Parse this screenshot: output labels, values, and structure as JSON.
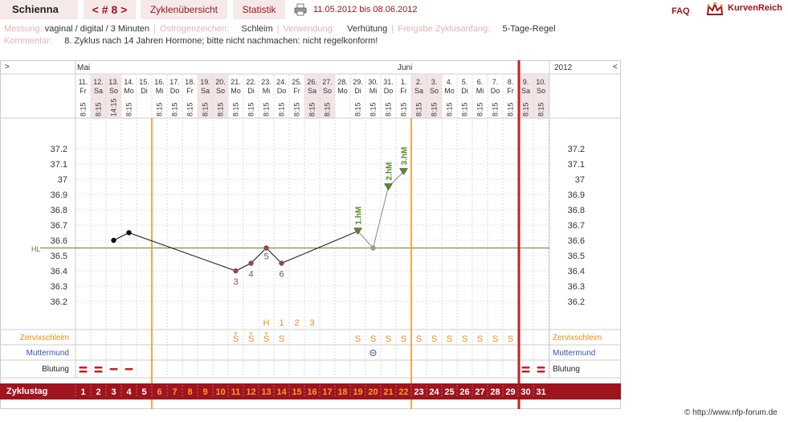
{
  "header": {
    "name": "Schienna",
    "cycle_nav": "< # 8 >",
    "tab_overview": "Zyklenübersicht",
    "tab_stats": "Statistik",
    "date_range": "11.05.2012 bis 08.06.2012",
    "faq": "FAQ",
    "brand": "KurvenReich",
    "print_icon": "printer-icon",
    "crown_icon": "crown-icon"
  },
  "info": {
    "messung_label": "Messung:",
    "messung_value": "vaginal / digital / 3 Minuten",
    "oestrogen_label": "Östrogenzeichen:",
    "oestrogen_value": "Schleim",
    "verwendung_label": "Verwendung:",
    "verwendung_value": "Verhütung",
    "freigabe_label": "Freigabe Zyklusanfang:",
    "freigabe_value": "5-Tage-Regel",
    "kommentar_label": "Kommentar:",
    "kommentar_value": "8. Zyklus nach 14 Jahren Hormone; bitte nicht nachmachen: nicht regelkonform!"
  },
  "chart": {
    "nav_left": ">",
    "nav_right": "<",
    "month_may": "Mai",
    "month_june": "Juni",
    "year": "2012",
    "days": [
      {
        "date": "11.",
        "wd": "Fr",
        "time": "8:15",
        "we": false
      },
      {
        "date": "12.",
        "wd": "Sa",
        "time": "8:15",
        "we": true
      },
      {
        "date": "13.",
        "wd": "So",
        "time": "14:15",
        "we": true
      },
      {
        "date": "14.",
        "wd": "Mo",
        "time": "8:15",
        "we": false
      },
      {
        "date": "15.",
        "wd": "Di",
        "time": "",
        "we": false
      },
      {
        "date": "16.",
        "wd": "Mi",
        "time": "8:15",
        "we": false
      },
      {
        "date": "17.",
        "wd": "Do",
        "time": "8:15",
        "we": false
      },
      {
        "date": "18.",
        "wd": "Fr",
        "time": "8:15",
        "we": false
      },
      {
        "date": "19.",
        "wd": "Sa",
        "time": "8:15",
        "we": true
      },
      {
        "date": "20.",
        "wd": "So",
        "time": "8:15",
        "we": true
      },
      {
        "date": "21.",
        "wd": "Mo",
        "time": "8:15",
        "we": false
      },
      {
        "date": "22.",
        "wd": "Di",
        "time": "8:15",
        "we": false
      },
      {
        "date": "23.",
        "wd": "Mi",
        "time": "8:15",
        "we": false
      },
      {
        "date": "24.",
        "wd": "Do",
        "time": "8:15",
        "we": false
      },
      {
        "date": "25.",
        "wd": "Fr",
        "time": "8:15",
        "we": false
      },
      {
        "date": "26.",
        "wd": "Sa",
        "time": "8:15",
        "we": true
      },
      {
        "date": "27.",
        "wd": "So",
        "time": "8:15",
        "we": true
      },
      {
        "date": "28.",
        "wd": "Mo",
        "time": "",
        "we": false
      },
      {
        "date": "29.",
        "wd": "Di",
        "time": "8:15",
        "we": false
      },
      {
        "date": "30.",
        "wd": "Mi",
        "time": "8:15",
        "we": false
      },
      {
        "date": "31.",
        "wd": "Do",
        "time": "8:15",
        "we": false
      },
      {
        "date": "1.",
        "wd": "Fr",
        "time": "8:15",
        "we": false
      },
      {
        "date": "2.",
        "wd": "Sa",
        "time": "8:15",
        "we": true
      },
      {
        "date": "3.",
        "wd": "So",
        "time": "8:15",
        "we": true
      },
      {
        "date": "4.",
        "wd": "Mo",
        "time": "8:15",
        "we": false
      },
      {
        "date": "5.",
        "wd": "Di",
        "time": "8:15",
        "we": false
      },
      {
        "date": "6.",
        "wd": "Mi",
        "time": "8:15",
        "we": false
      },
      {
        "date": "7.",
        "wd": "Do",
        "time": "8:15",
        "we": false
      },
      {
        "date": "8.",
        "wd": "Fr",
        "time": "8:15",
        "we": false
      },
      {
        "date": "9.",
        "wd": "Sa",
        "time": "8:15",
        "we": true
      },
      {
        "date": "10.",
        "wd": "So",
        "time": "8:15",
        "we": true
      }
    ],
    "y_ticks": [
      "37.2",
      "37.1",
      "37",
      "36.9",
      "36.8",
      "36.7",
      "36.6",
      "36.5",
      "36.4",
      "36.3",
      "36.2"
    ],
    "hl_label": "HL",
    "hl_value": 36.55,
    "temps": [
      {
        "day": 3,
        "t": 36.6
      },
      {
        "day": 4,
        "t": 36.65
      },
      {
        "day": 11,
        "t": 36.4,
        "label": "3"
      },
      {
        "day": 12,
        "t": 36.45,
        "label": "4"
      },
      {
        "day": 13,
        "t": 36.55,
        "label": "5"
      },
      {
        "day": 14,
        "t": 36.45,
        "label": "6"
      },
      {
        "day": 19,
        "t": 36.66,
        "hm": "1.hM"
      },
      {
        "day": 20,
        "t": 36.55
      },
      {
        "day": 21,
        "t": 36.95,
        "hm": "2.hM"
      },
      {
        "day": 22,
        "t": 37.05,
        "hm": "3.hM"
      }
    ],
    "peak_labels": [
      {
        "day": 13,
        "text": "H"
      },
      {
        "day": 14,
        "text": "1"
      },
      {
        "day": 15,
        "text": "2"
      },
      {
        "day": 16,
        "text": "3"
      }
    ],
    "zervix_label": "Zervixschleim",
    "zervix": [
      {
        "day": 11,
        "text": "S",
        "plus": true
      },
      {
        "day": 12,
        "text": "S",
        "plus": true
      },
      {
        "day": 13,
        "text": "S",
        "plus": true
      },
      {
        "day": 14,
        "text": "S"
      },
      {
        "day": 19,
        "text": "S"
      },
      {
        "day": 20,
        "text": "S"
      },
      {
        "day": 21,
        "text": "S"
      },
      {
        "day": 22,
        "text": "S"
      },
      {
        "day": 23,
        "text": "S"
      },
      {
        "day": 24,
        "text": "S"
      },
      {
        "day": 25,
        "text": "S"
      },
      {
        "day": 26,
        "text": "S"
      },
      {
        "day": 27,
        "text": "S"
      },
      {
        "day": 28,
        "text": "S"
      },
      {
        "day": 29,
        "text": "S"
      }
    ],
    "muttermund_label": "Muttermund",
    "blutung_label": "Blutung",
    "zyklustag_label": "Zyklustag",
    "colors": {
      "brand": "#a0141e",
      "orange": "#f08c14",
      "green": "#5a8a2a",
      "weekend": "#f3e4e6",
      "cyclebar": "#a0141e"
    }
  },
  "footer": "© http://www.nfp-forum.de"
}
